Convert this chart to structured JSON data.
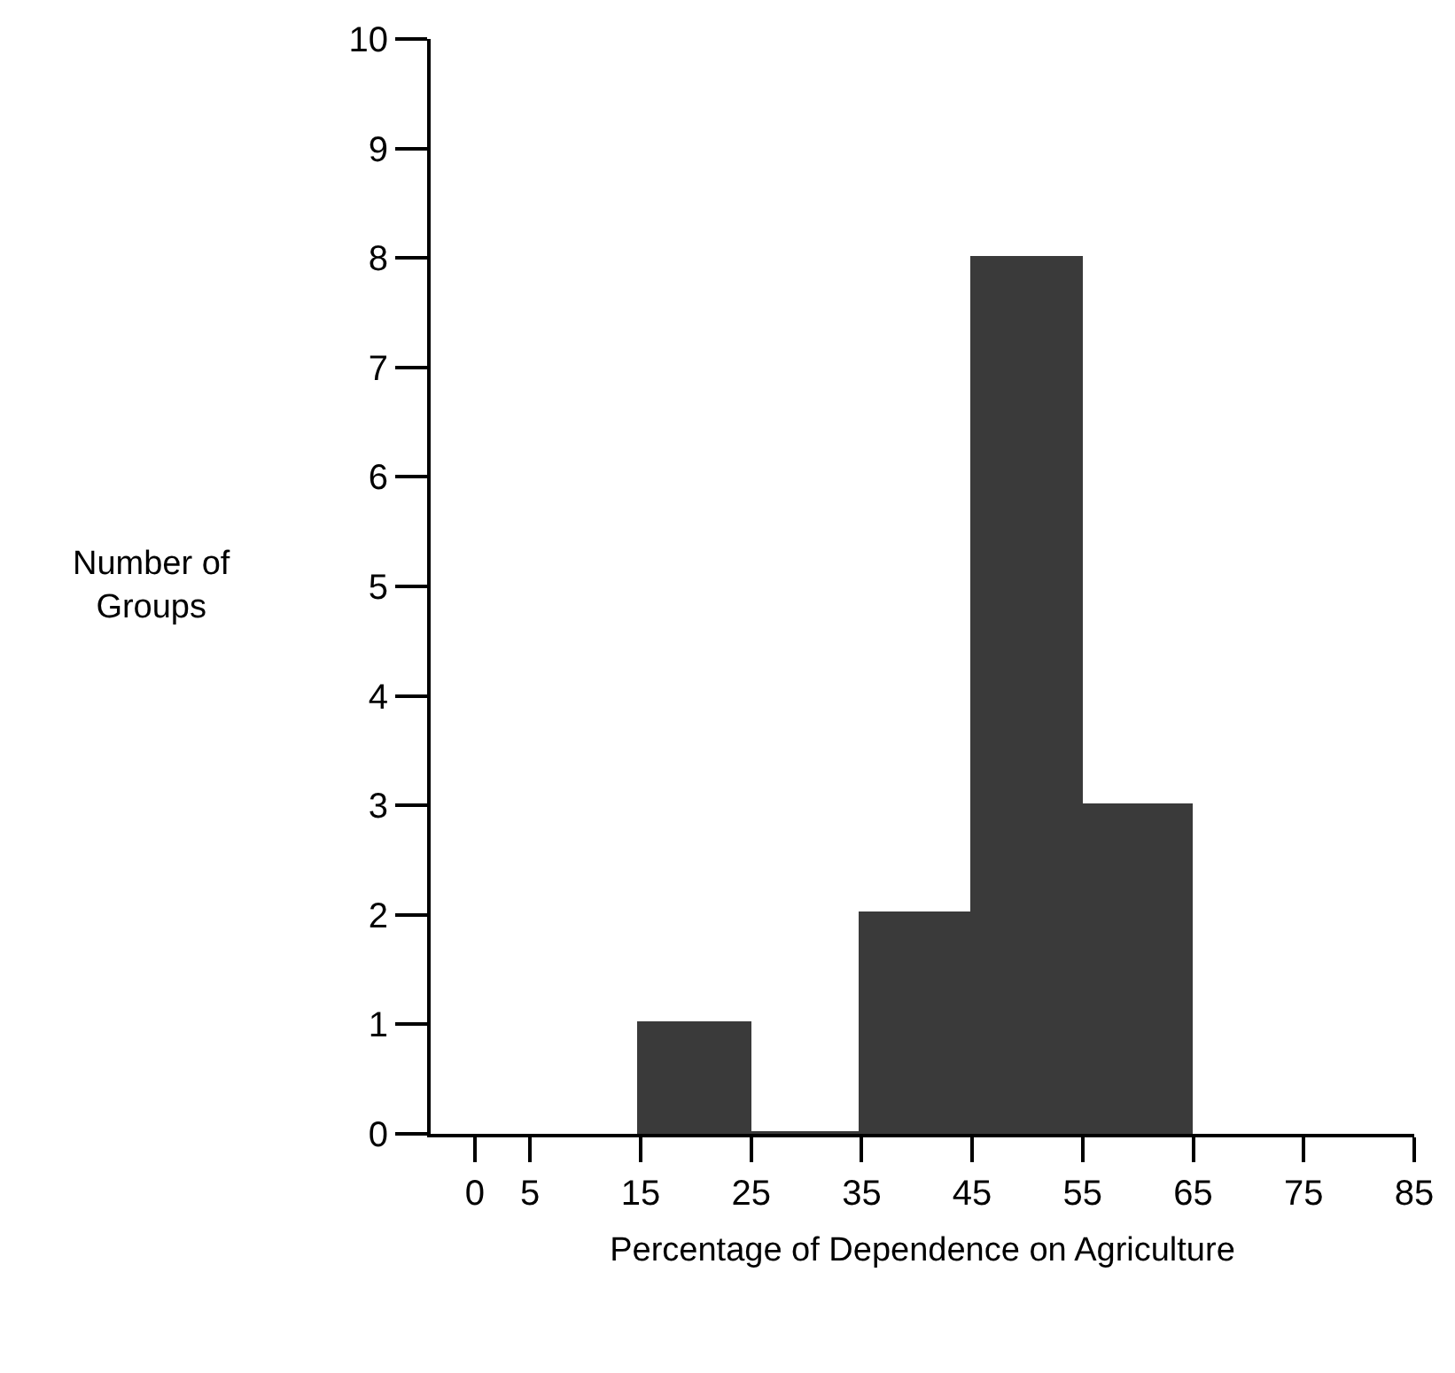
{
  "chart_data": {
    "type": "histogram",
    "xlabel": "Percentage of Dependence on Agriculture",
    "ylabel": "Number of\nGroups",
    "bins": [
      15,
      25,
      35,
      45,
      55,
      65
    ],
    "values": [
      1,
      0,
      2,
      8,
      3
    ],
    "color": "#3a3a3a",
    "xlim": [
      -4,
      85
    ],
    "xticks": [
      0,
      5,
      15,
      25,
      35,
      45,
      55,
      65,
      75,
      85
    ],
    "ylim": [
      0,
      10
    ],
    "yticks": [
      0,
      1,
      2,
      3,
      4,
      5,
      6,
      7,
      8,
      9,
      10
    ]
  }
}
